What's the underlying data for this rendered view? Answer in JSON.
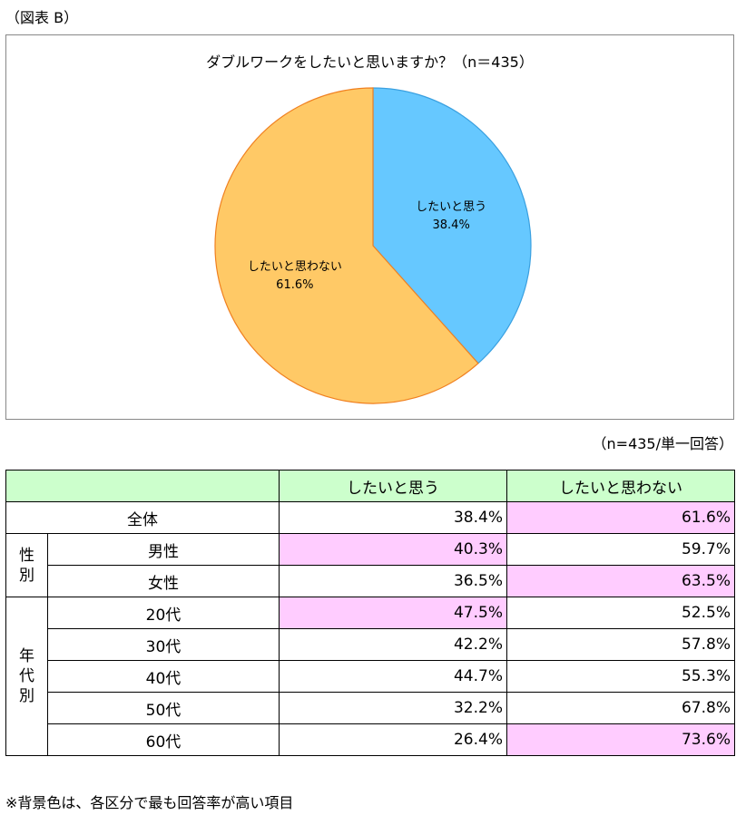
{
  "figure_label": "（図表 B）",
  "chart_data": {
    "type": "pie",
    "title": "ダブルワークをしたいと思いますか？（n＝435）",
    "slices": [
      {
        "label": "したいと思う",
        "value": 38.4,
        "value_text": "38.4%",
        "color": "#66c8ff",
        "edge": "#3aa0e0"
      },
      {
        "label": "したいと思わない",
        "value": 61.6,
        "value_text": "61.6%",
        "color": "#ffc966",
        "edge": "#f08020"
      }
    ]
  },
  "table_note": "（n=435/単一回答）",
  "table": {
    "columns": [
      "",
      "したいと思う",
      "したいと思わない"
    ],
    "overall": {
      "label": "全体",
      "values": [
        "38.4%",
        "61.6%"
      ],
      "highlight": [
        false,
        true
      ]
    },
    "groups": [
      {
        "name": "性別",
        "rows": [
          {
            "label": "男性",
            "values": [
              "40.3%",
              "59.7%"
            ],
            "highlight": [
              true,
              false
            ]
          },
          {
            "label": "女性",
            "values": [
              "36.5%",
              "63.5%"
            ],
            "highlight": [
              false,
              true
            ]
          }
        ]
      },
      {
        "name": "年代別",
        "rows": [
          {
            "label": "20代",
            "values": [
              "47.5%",
              "52.5%"
            ],
            "highlight": [
              true,
              false
            ]
          },
          {
            "label": "30代",
            "values": [
              "42.2%",
              "57.8%"
            ],
            "highlight": [
              false,
              false
            ]
          },
          {
            "label": "40代",
            "values": [
              "44.7%",
              "55.3%"
            ],
            "highlight": [
              false,
              false
            ]
          },
          {
            "label": "50代",
            "values": [
              "32.2%",
              "67.8%"
            ],
            "highlight": [
              false,
              false
            ]
          },
          {
            "label": "60代",
            "values": [
              "26.4%",
              "73.6%"
            ],
            "highlight": [
              false,
              true
            ]
          }
        ]
      }
    ]
  },
  "footnote": "※背景色は、各区分で最も回答率が高い項目"
}
